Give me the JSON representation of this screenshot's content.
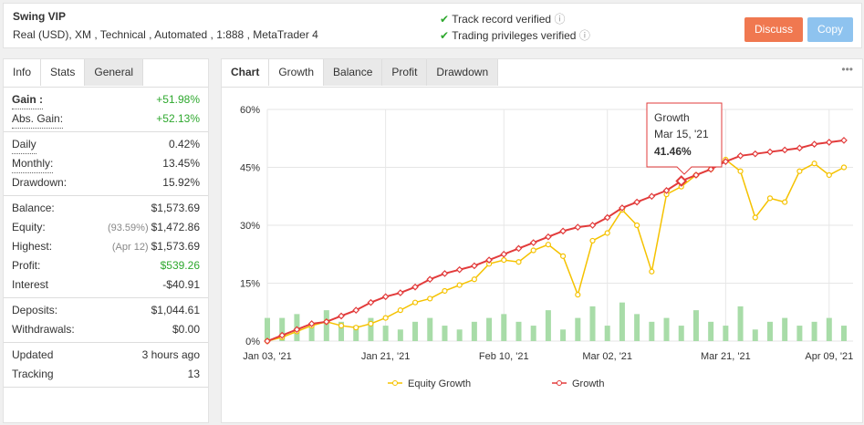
{
  "header": {
    "title": "Swing VIP",
    "subtitle": "Real (USD), XM , Technical , Automated , 1:888 , MetaTrader 4",
    "verifications": [
      "Track record verified",
      "Trading privileges verified"
    ],
    "buttons": [
      "Discuss",
      "Copy"
    ]
  },
  "left_tabs": [
    "Info",
    "Stats",
    "General"
  ],
  "stats": [
    [
      {
        "label": "Gain :",
        "value": "+51.98%",
        "color": "#2ea82e"
      },
      {
        "label": "Abs. Gain:",
        "value": "+52.13%",
        "color": "#2ea82e"
      }
    ],
    [
      {
        "label": "Daily",
        "value": "0.42%"
      },
      {
        "label": "Monthly:",
        "value": "13.45%"
      },
      {
        "label": "Drawdown:",
        "value": "15.92%"
      }
    ],
    [
      {
        "label": "Balance:",
        "value": "$1,573.69"
      },
      {
        "label": "Equity:",
        "note": "(93.59%)",
        "value": "$1,472.86"
      },
      {
        "label": "Highest:",
        "note": "(Apr 12)",
        "value": "$1,573.69"
      },
      {
        "label": "Profit:",
        "value": "$539.26",
        "color": "#2ea82e"
      },
      {
        "label": "Interest",
        "value": "-$40.91"
      }
    ],
    [
      {
        "label": "Deposits:",
        "value": "$1,044.61"
      },
      {
        "label": "Withdrawals:",
        "value": "$0.00"
      }
    ],
    [
      {
        "label": "Updated",
        "value": "3 hours ago"
      },
      {
        "label": "Tracking",
        "value": "13"
      }
    ]
  ],
  "chart_tabs": [
    "Chart",
    "Growth",
    "Balance",
    "Profit",
    "Drawdown"
  ],
  "chart_data": {
    "type": "line",
    "categories": [
      "Jan 03, '21",
      null,
      null,
      null,
      null,
      null,
      null,
      null,
      "Jan 21, '21",
      null,
      null,
      null,
      null,
      null,
      null,
      null,
      "Feb 10, '21",
      null,
      null,
      null,
      null,
      null,
      null,
      "Mar 02, '21",
      null,
      null,
      null,
      null,
      null,
      null,
      null,
      "Mar 21, '21",
      null,
      null,
      null,
      null,
      null,
      null,
      "Apr 09, '21",
      null
    ],
    "series": [
      {
        "name": "Equity Growth",
        "color": "#f5c200",
        "values": [
          0,
          1,
          2.5,
          4,
          5,
          4,
          3.5,
          4.5,
          6,
          8,
          10,
          11,
          13,
          14.5,
          16,
          20,
          21,
          20.5,
          23.5,
          25,
          22,
          12,
          26,
          28,
          34,
          30,
          18,
          38,
          40,
          43,
          44.5,
          47,
          44,
          32,
          37,
          36,
          44,
          46,
          43,
          45
        ]
      },
      {
        "name": "Growth",
        "color": "#e23b3b",
        "values": [
          0,
          1.5,
          3,
          4.5,
          5,
          6.5,
          8,
          10,
          11.5,
          12.5,
          14,
          16,
          17.5,
          18.5,
          19.5,
          21,
          22.5,
          24,
          25.5,
          27,
          28.5,
          29.5,
          30,
          32,
          34.5,
          36,
          37.5,
          39,
          41.46,
          43,
          44.5,
          46.5,
          48,
          48.5,
          49,
          49.5,
          50,
          51,
          51.5,
          52
        ]
      }
    ],
    "bar_values": [
      6,
      6,
      7,
      4,
      8,
      5,
      4,
      6,
      4,
      3,
      5,
      6,
      4,
      3,
      5,
      6,
      7,
      5,
      4,
      8,
      3,
      6,
      9,
      4,
      10,
      7,
      5,
      6,
      4,
      8,
      5,
      4,
      9,
      3,
      5,
      6,
      4,
      5,
      6,
      4
    ],
    "bar_color": "#a8dca8",
    "ylim": [
      0,
      60
    ],
    "yticks": [
      {
        "value": 0,
        "label": "0%"
      },
      {
        "value": 15,
        "label": "15%"
      },
      {
        "value": 30,
        "label": "30%"
      },
      {
        "value": 45,
        "label": "45%"
      },
      {
        "value": 60,
        "label": "60%"
      }
    ],
    "grid": true,
    "tooltip": {
      "title": "Growth",
      "date": "Mar 15, '21",
      "value": "41.46%"
    }
  }
}
